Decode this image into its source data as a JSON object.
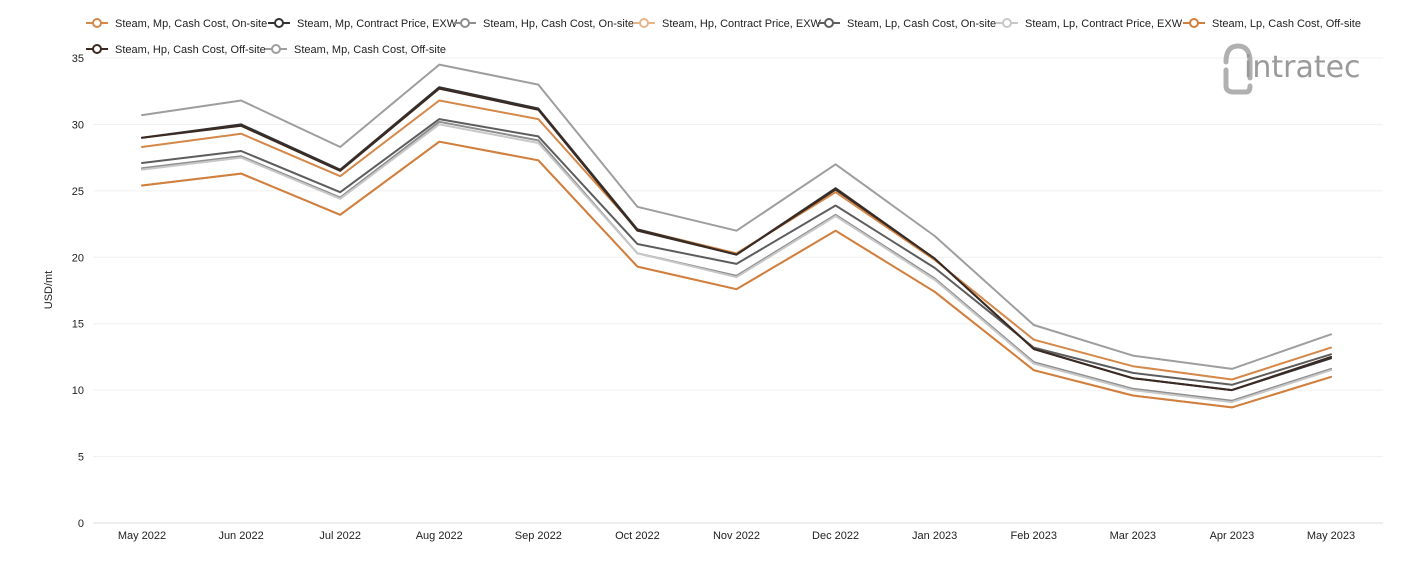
{
  "logo": {
    "text": "intratec",
    "color": "#9a9a9a"
  },
  "chart_data": {
    "type": "line",
    "ylabel": "USD/mt",
    "xlabel": "",
    "ylim": [
      0,
      35
    ],
    "yticks": [
      0,
      5,
      10,
      15,
      20,
      25,
      30,
      35
    ],
    "grid": true,
    "legend_position": "top",
    "categories": [
      "May 2022",
      "Jun 2022",
      "Jul 2022",
      "Aug 2022",
      "Sep 2022",
      "Oct 2022",
      "Nov 2022",
      "Dec 2022",
      "Jan 2023",
      "Feb 2023",
      "Mar 2023",
      "Apr 2023",
      "May 2023"
    ],
    "series": [
      {
        "name": "Steam, Mp, Cash Cost, On-site",
        "color": "#d4884a",
        "values": [
          28.3,
          29.3,
          26.1,
          31.8,
          30.4,
          22.1,
          20.3,
          24.9,
          19.8,
          13.8,
          11.8,
          10.8,
          13.2
        ]
      },
      {
        "name": "Steam, Mp, Contract Price, EXW",
        "color": "#333333",
        "values": [
          29.0,
          30.0,
          26.6,
          32.8,
          31.2,
          22.1,
          20.2,
          25.2,
          19.9,
          13.1,
          10.9,
          10.0,
          12.4
        ]
      },
      {
        "name": "Steam, Hp, Cash Cost, On-site",
        "color": "#8e8e8e",
        "values": [
          26.7,
          27.6,
          24.5,
          30.2,
          28.8,
          20.3,
          18.6,
          23.2,
          18.4,
          12.1,
          10.1,
          9.2,
          11.6
        ]
      },
      {
        "name": "Steam, Hp, Contract Price, EXW",
        "color": "#e8b48a",
        "values": [
          25.4,
          26.3,
          23.2,
          28.7,
          27.3,
          19.3,
          17.6,
          22.0,
          17.4,
          11.5,
          9.6,
          8.7,
          11.0
        ]
      },
      {
        "name": "Steam, Lp, Cash Cost, On-site",
        "color": "#5d5d5d",
        "values": [
          27.1,
          28.0,
          24.9,
          30.4,
          29.1,
          21.0,
          19.5,
          23.9,
          19.2,
          13.2,
          11.3,
          10.4,
          12.7
        ]
      },
      {
        "name": "Steam, Lp, Contract Price, EXW",
        "color": "#c8c8c8",
        "values": [
          26.6,
          27.5,
          24.4,
          30.0,
          28.6,
          20.3,
          18.5,
          23.1,
          18.3,
          12.0,
          10.0,
          9.1,
          11.5
        ]
      },
      {
        "name": "Steam, Lp, Cash Cost, Off-site",
        "color": "#d17f3e",
        "values": [
          25.4,
          26.3,
          23.2,
          28.7,
          27.3,
          19.3,
          17.6,
          22.0,
          17.4,
          11.5,
          9.6,
          8.7,
          11.0
        ]
      },
      {
        "name": "Steam, Hp, Cash Cost, Off-site",
        "color": "#3a2a22",
        "values": [
          29.0,
          29.9,
          26.5,
          32.7,
          31.1,
          22.0,
          20.2,
          25.1,
          19.9,
          13.1,
          10.9,
          10.0,
          12.5
        ]
      },
      {
        "name": "Steam, Mp, Cash Cost, Off-site",
        "color": "#9e9e9e",
        "values": [
          30.7,
          31.8,
          28.3,
          34.5,
          33.0,
          23.8,
          22.0,
          27.0,
          21.6,
          14.9,
          12.6,
          11.6,
          14.2
        ]
      }
    ]
  }
}
